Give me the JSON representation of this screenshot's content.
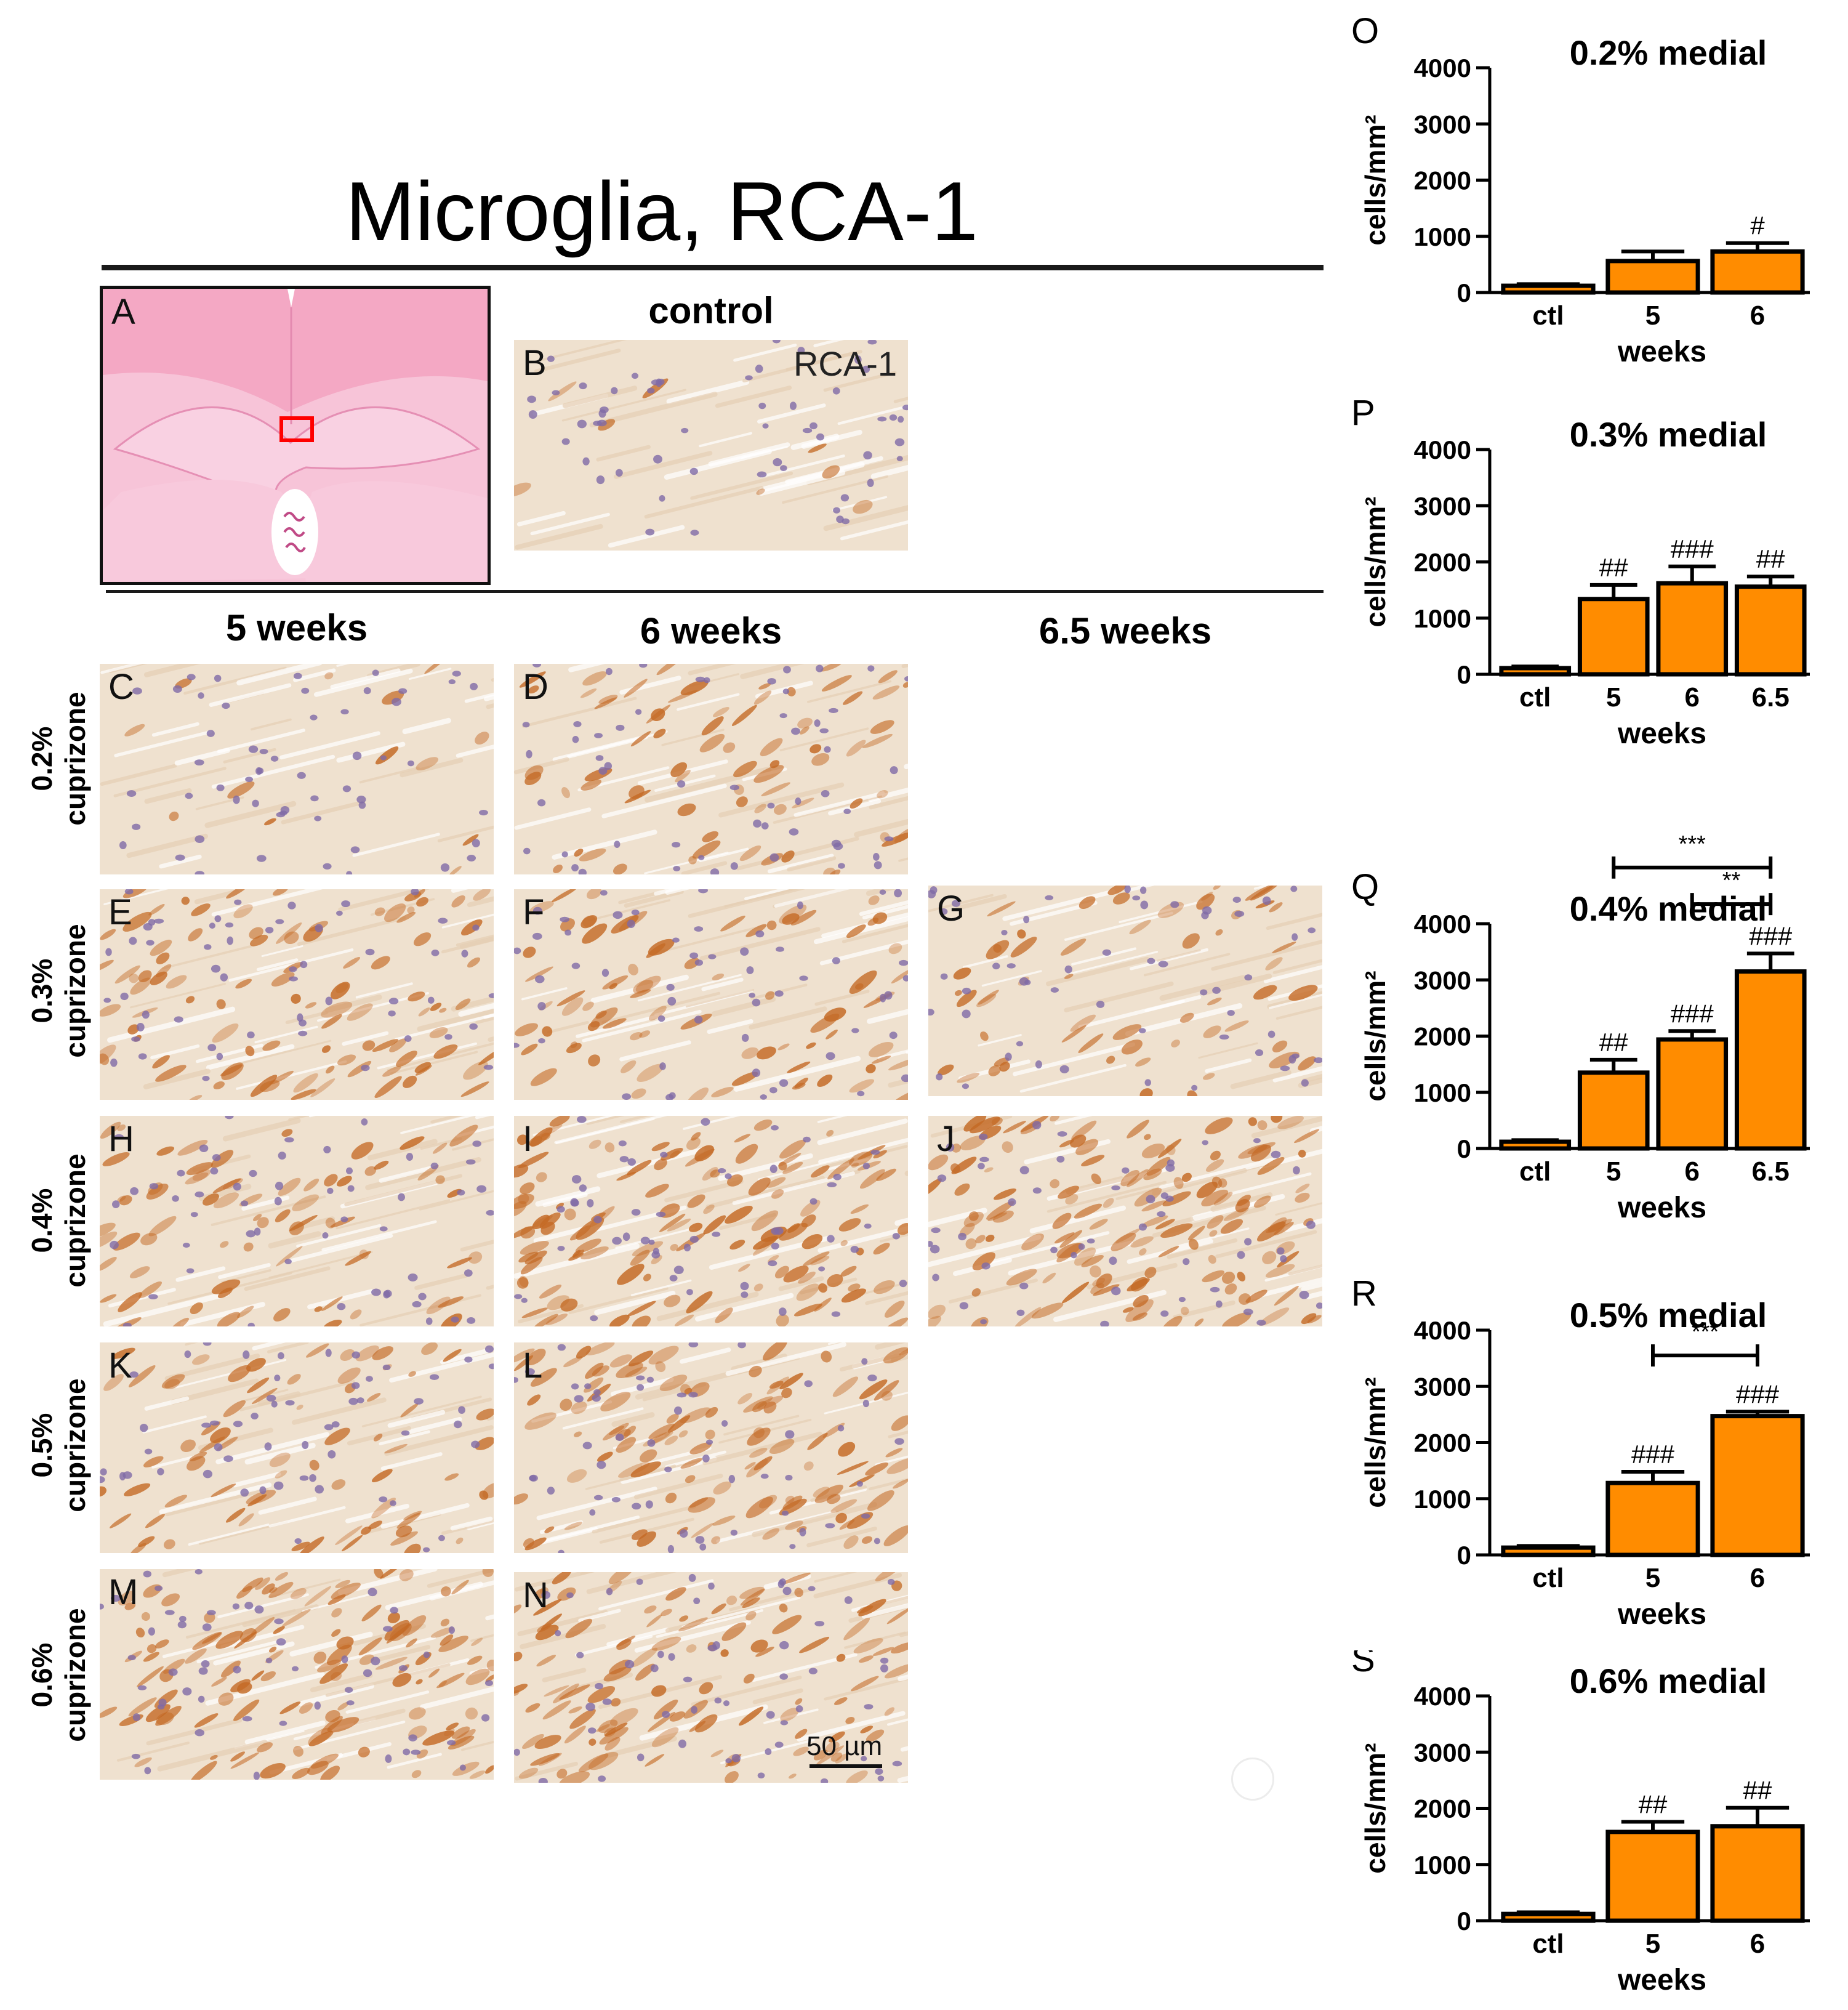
{
  "figure": {
    "title": "Microglia, RCA-1",
    "control_label": "control",
    "stain_label": "RCA-1",
    "column_headers": [
      "5 weeks",
      "6 weeks",
      "6.5 weeks"
    ],
    "row_labels": [
      [
        "0.2%",
        "cuprizone"
      ],
      [
        "0.3%",
        "cuprizone"
      ],
      [
        "0.4%",
        "cuprizone"
      ],
      [
        "0.5%",
        "cuprizone"
      ],
      [
        "0.6%",
        "cuprizone"
      ]
    ],
    "panel_letters": {
      "A": "A",
      "B": "B",
      "C": "C",
      "D": "D",
      "E": "E",
      "F": "F",
      "G": "G",
      "H": "H",
      "I": "I",
      "J": "J",
      "K": "K",
      "L": "L",
      "M": "M",
      "N": "N"
    },
    "scale_bar": "50 µm",
    "staining_level": {
      "B": 0.05,
      "C": 0.08,
      "D": 0.45,
      "E": 0.6,
      "F": 0.5,
      "G": 0.35,
      "H": 0.45,
      "I": 0.85,
      "J": 0.9,
      "K": 0.45,
      "L": 0.75,
      "M": 0.8,
      "N": 0.75
    },
    "colors": {
      "bar_fill": "#ff8c00",
      "bar_stroke": "#000000",
      "stain_brown": "#c46a25",
      "nuclei": "#7f6aa6",
      "tissue_bg": "#efe1cf",
      "section_pink": "#ef93b8",
      "roi_box": "#ff0000"
    }
  },
  "chart_data": [
    {
      "type": "bar",
      "panel": "O",
      "title": "0.2% medial",
      "ylabel": "cells/mm²",
      "xlabel": "weeks",
      "ylim": [
        0,
        4000
      ],
      "yticks": [
        0,
        1000,
        2000,
        3000,
        4000
      ],
      "categories": [
        "ctl",
        "5",
        "6"
      ],
      "values": [
        120,
        560,
        730
      ],
      "errors": [
        30,
        170,
        150
      ],
      "significance": [
        "",
        "",
        "#"
      ],
      "brackets": []
    },
    {
      "type": "bar",
      "panel": "P",
      "title": "0.3% medial",
      "ylabel": "cells/mm²",
      "xlabel": "weeks",
      "ylim": [
        0,
        4000
      ],
      "yticks": [
        0,
        1000,
        2000,
        3000,
        4000
      ],
      "categories": [
        "ctl",
        "5",
        "6",
        "6.5"
      ],
      "values": [
        110,
        1340,
        1620,
        1560
      ],
      "errors": [
        30,
        250,
        300,
        180
      ],
      "significance": [
        "",
        "##",
        "###",
        "##"
      ],
      "brackets": []
    },
    {
      "type": "bar",
      "panel": "Q",
      "title": "0.4% medial",
      "ylabel": "cells/mm²",
      "xlabel": "weeks",
      "ylim": [
        0,
        4000
      ],
      "yticks": [
        0,
        1000,
        2000,
        3000,
        4000
      ],
      "categories": [
        "ctl",
        "5",
        "6",
        "6.5"
      ],
      "values": [
        120,
        1350,
        1940,
        3150
      ],
      "errors": [
        30,
        230,
        150,
        320
      ],
      "significance": [
        "",
        "##",
        "###",
        "###"
      ],
      "brackets": [
        {
          "from": 1,
          "to": 3,
          "label": "***",
          "y": 5000
        },
        {
          "from": 2,
          "to": 3,
          "label": "**",
          "y": 4350
        }
      ]
    },
    {
      "type": "bar",
      "panel": "R",
      "title": "0.5% medial",
      "ylabel": "cells/mm²",
      "xlabel": "weeks",
      "ylim": [
        0,
        4000
      ],
      "yticks": [
        0,
        1000,
        2000,
        3000,
        4000
      ],
      "categories": [
        "ctl",
        "5",
        "6"
      ],
      "values": [
        130,
        1280,
        2470
      ],
      "errors": [
        30,
        200,
        80
      ],
      "significance": [
        "",
        "###",
        "###"
      ],
      "brackets": [
        {
          "from": 1,
          "to": 2,
          "label": "***",
          "y": 3550
        }
      ]
    },
    {
      "type": "bar",
      "panel": "S",
      "title": "0.6% medial",
      "ylabel": "cells/mm²",
      "xlabel": "weeks",
      "ylim": [
        0,
        4000
      ],
      "yticks": [
        0,
        1000,
        2000,
        3000,
        4000
      ],
      "categories": [
        "ctl",
        "5",
        "6"
      ],
      "values": [
        120,
        1580,
        1680
      ],
      "errors": [
        30,
        180,
        330
      ],
      "significance": [
        "",
        "##",
        "##"
      ],
      "brackets": []
    }
  ]
}
